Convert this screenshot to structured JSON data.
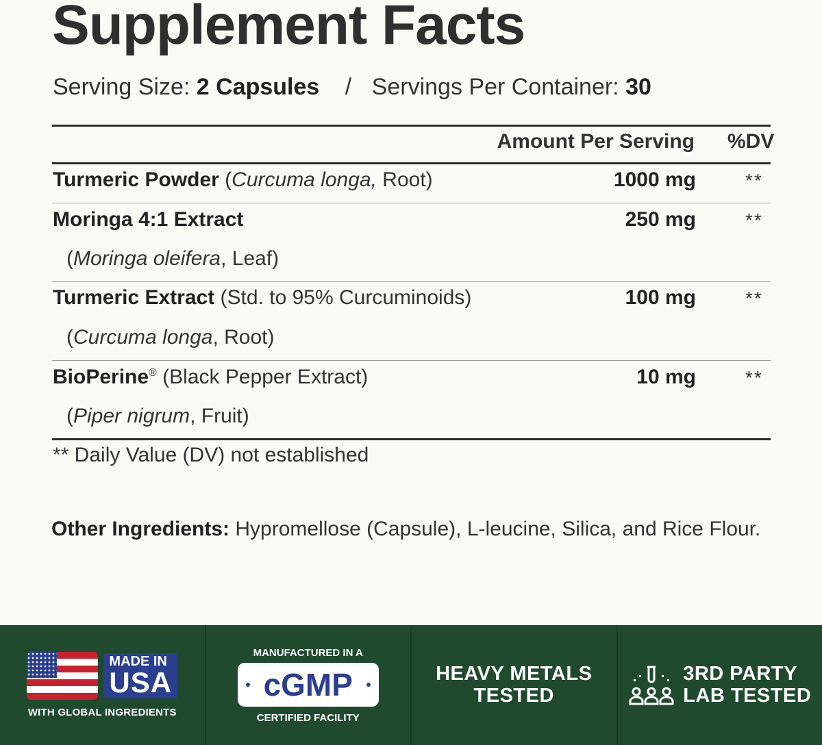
{
  "title": "Supplement Facts",
  "serving": {
    "size_label": "Serving Size:",
    "size_value": "2 Capsules",
    "separator": "/",
    "per_container_label": "Servings Per Container:",
    "per_container_value": "30"
  },
  "table": {
    "header_amount": "Amount Per Serving",
    "header_dv": "%DV",
    "rows": [
      {
        "name": "Turmeric Powder",
        "detail": " (",
        "source_italic": "Curcuma longa,",
        "source_rest": " Root)",
        "sub_italic": "",
        "sub_rest": "",
        "amount": "1000 mg",
        "dv": "**"
      },
      {
        "name": "Moringa 4:1 Extract",
        "detail": "",
        "source_italic": "",
        "source_rest": "",
        "sub_open": "(",
        "sub_italic": "Moringa oleifera",
        "sub_rest": ", Leaf)",
        "amount": "250 mg",
        "dv": "**"
      },
      {
        "name": "Turmeric Extract",
        "detail": " (Std. to 95% Curcuminoids)",
        "source_italic": "",
        "source_rest": "",
        "sub_open": "(",
        "sub_italic": "Curcuma longa",
        "sub_rest": ", Root)",
        "amount": "100 mg",
        "dv": "**"
      },
      {
        "name": "BioPerine",
        "mark": "®",
        "detail": " (Black Pepper Extract)",
        "source_italic": "",
        "source_rest": "",
        "sub_open": "(",
        "sub_italic": "Piper nigrum",
        "sub_rest": ", Fruit)",
        "amount": "10 mg",
        "dv": "**"
      }
    ]
  },
  "footnote": "** Daily Value (DV) not established",
  "other_ingredients": {
    "label": "Other Ingredients:",
    "value": " Hypromellose (Capsule), L-leucine, Silica, and Rice Flour."
  },
  "badges": {
    "usa": {
      "line1": "MADE IN",
      "line2": "USA",
      "sub": "WITH GLOBAL INGREDIENTS",
      "icon": "us-flag-icon"
    },
    "gmp": {
      "top": "MANUFACTURED IN A",
      "mark": "cGMP",
      "bottom": "CERTIFIED FACILITY"
    },
    "metals": {
      "line1": "HEAVY METALS",
      "line2": "TESTED"
    },
    "lab": {
      "line1": "3RD PARTY",
      "line2": "LAB TESTED",
      "icon": "lab-people-icon"
    }
  },
  "colors": {
    "band": "#1f4a2e",
    "badge_blue": "#2b3f8f",
    "flag_red": "#c8202f"
  }
}
